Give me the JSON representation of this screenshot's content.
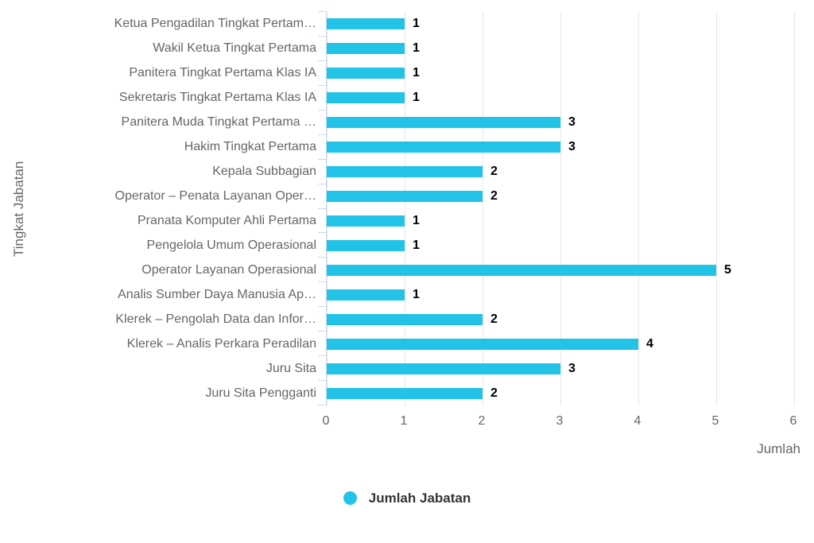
{
  "chart_data": {
    "type": "bar",
    "orientation": "horizontal",
    "categories": [
      "Ketua Pengadilan Tingkat Pertam…",
      "Wakil Ketua Tingkat Pertama",
      "Panitera Tingkat Pertama Klas IA",
      "Sekretaris Tingkat Pertama Klas IA",
      "Panitera Muda Tingkat Pertama …",
      "Hakim Tingkat Pertama",
      "Kepala Subbagian",
      "Operator – Penata Layanan Oper…",
      "Pranata Komputer Ahli Pertama",
      "Pengelola Umum Operasional",
      "Operator Layanan Operasional",
      "Analis Sumber Daya Manusia Ap…",
      "Klerek – Pengolah Data dan Infor…",
      "Klerek – Analis Perkara Peradilan",
      "Juru Sita",
      "Juru Sita Pengganti"
    ],
    "values": [
      1,
      1,
      1,
      1,
      3,
      3,
      2,
      2,
      1,
      1,
      5,
      1,
      2,
      4,
      3,
      2
    ],
    "xlabel": "Jumlah",
    "ylabel": "Tingkat Jabatan",
    "xlim": [
      0,
      6
    ],
    "x_ticks": [
      0,
      1,
      2,
      3,
      4,
      5,
      6
    ],
    "grid": true,
    "data_labels": true,
    "legend_position": "bottom",
    "legend": [
      {
        "name": "Jumlah Jabatan",
        "color": "#23c3e8"
      }
    ],
    "colors": {
      "bar": "#23c3e8",
      "axis_line": "#ccd6eb",
      "gridline": "#e6e6e6",
      "axis_text": "#666666",
      "value_label": "#000000",
      "legend_text": "#333333",
      "background": "#ffffff"
    }
  }
}
